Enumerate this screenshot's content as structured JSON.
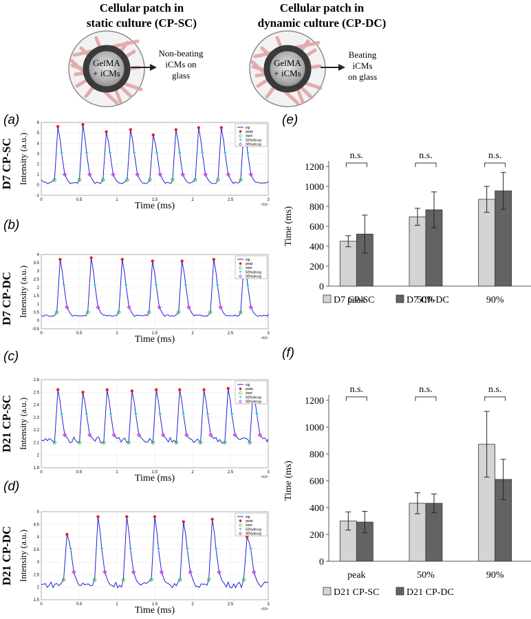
{
  "header": {
    "left": {
      "title_line1": "Cellular patch in",
      "title_line2": "static culture (CP-SC)",
      "dish_line1": "GelMA",
      "dish_line2": "+ iCMs",
      "result_line1": "Non-beating",
      "result_line2": "iCMs on",
      "result_line3": "glass"
    },
    "right": {
      "title_line1": "Cellular patch in",
      "title_line2": "dynamic culture (CP-DC)",
      "dish_line1": "GelMA",
      "dish_line2": "+ iCMs",
      "result_line1": "Beating",
      "result_line2": "iCMs",
      "result_line3": "on glass"
    }
  },
  "colors": {
    "signal": "#1f1fd6",
    "peak": "#e8201e",
    "start": "#2fc42f",
    "decay50": "#2ad4dc",
    "decay90": "#d42cd8",
    "bar_sc": "#d4d4d4",
    "bar_dc": "#636363",
    "dish_ring": "#3a3a3a",
    "fiber": "#e0a0a0"
  },
  "chart_data": [
    {
      "id": "a",
      "panel_label": "(a)",
      "row_label": "D7 CP-SC",
      "type": "line",
      "xlabel": "Time (ms)",
      "ylabel": "Intensity (a.u.)",
      "x_exp": "×10⁴",
      "xlim": [
        0,
        3
      ],
      "ylim": [
        -1,
        6
      ],
      "xticks": [
        "0",
        "0.5",
        "1",
        "1.5",
        "2",
        "2.5",
        "3"
      ],
      "yticks": [
        "-1",
        "0",
        "1",
        "2",
        "3",
        "4",
        "5",
        "6"
      ],
      "legend": [
        "sig",
        "peak",
        "start",
        "50%decay",
        "90%decay"
      ],
      "baseline": 0.2,
      "start_level": 0.5,
      "peaks_x": [
        0.22,
        0.55,
        0.86,
        1.18,
        1.48,
        1.78,
        2.08,
        2.38,
        2.68
      ],
      "peaks_y": [
        5.6,
        5.8,
        5.1,
        5.3,
        4.8,
        5.3,
        5.5,
        5.5,
        5.5
      ],
      "decay50_y": 3.0,
      "decay90_y": 1.0
    },
    {
      "id": "b",
      "panel_label": "(b)",
      "row_label": "D7 CP-DC",
      "type": "line",
      "xlabel": "Time (ms)",
      "ylabel": "Intensity (a.u.)",
      "x_exp": "×10⁴",
      "xlim": [
        0,
        3
      ],
      "ylim": [
        -0.5,
        4
      ],
      "xticks": [
        "0",
        "0.5",
        "1",
        "1.5",
        "2",
        "2.5",
        "3"
      ],
      "yticks": [
        "-0.5",
        "0",
        "0.5",
        "1",
        "1.5",
        "2",
        "2.5",
        "3",
        "3.5",
        "4"
      ],
      "legend": [
        "sig",
        "peak",
        "start",
        "50%decay",
        "90%decay"
      ],
      "baseline": 0.3,
      "start_level": 0.5,
      "peaks_x": [
        0.25,
        0.66,
        1.07,
        1.47,
        1.86,
        2.28,
        2.68
      ],
      "peaks_y": [
        3.7,
        3.8,
        3.7,
        3.6,
        3.6,
        3.7,
        3.6
      ],
      "decay50_y": 2.1,
      "decay90_y": 0.8
    },
    {
      "id": "c",
      "panel_label": "(c)",
      "row_label": "D21 CP-SC",
      "type": "line",
      "xlabel": "Time (ms)",
      "ylabel": "Intensity (a.u.)",
      "x_exp": "×10⁴",
      "xlim": [
        0,
        3
      ],
      "ylim": [
        1.9,
        2.6
      ],
      "xticks": [
        "0",
        "0.5",
        "1",
        "1.5",
        "2",
        "2.5",
        "3"
      ],
      "yticks": [
        "1.9",
        "2",
        "2.1",
        "2.2",
        "2.3",
        "2.4",
        "2.5",
        "2.6"
      ],
      "legend": [
        "sig",
        "peak",
        "start",
        "50%decay",
        "90%decay"
      ],
      "baseline": 2.12,
      "start_level": 2.1,
      "peaks_x": [
        0.22,
        0.55,
        0.87,
        1.2,
        1.52,
        1.83,
        2.15,
        2.47,
        2.8
      ],
      "peaks_y": [
        2.52,
        2.5,
        2.52,
        2.51,
        2.52,
        2.52,
        2.52,
        2.53,
        2.5
      ],
      "decay50_y": 2.32,
      "decay90_y": 2.16
    },
    {
      "id": "d",
      "panel_label": "(d)",
      "row_label": "D21 CP-DC",
      "type": "line",
      "xlabel": "Time (ms)",
      "ylabel": "Intensity (a.u.)",
      "x_exp": "×10⁴",
      "xlim": [
        0,
        3
      ],
      "ylim": [
        1.5,
        5
      ],
      "xticks": [
        "0",
        "0.5",
        "1",
        "1.5",
        "2",
        "2.5",
        "3"
      ],
      "yticks": [
        "1.5",
        "2",
        "2.5",
        "3",
        "3.5",
        "4",
        "4.5",
        "5"
      ],
      "legend": [
        "sig",
        "peak",
        "start",
        "50%decay",
        "90%decay"
      ],
      "baseline": 2.1,
      "start_level": 2.3,
      "peaks_x": [
        0.34,
        0.75,
        1.13,
        1.5,
        1.88,
        2.26,
        2.72
      ],
      "peaks_y": [
        4.1,
        4.8,
        4.8,
        4.8,
        4.6,
        4.7,
        4.0
      ],
      "decay50_y": 3.5,
      "decay90_y": 2.6
    },
    {
      "id": "e",
      "panel_label": "(e)",
      "type": "bar",
      "ylabel": "Time (ms)",
      "ylim": [
        0,
        1200
      ],
      "yticks": [
        "0",
        "200",
        "400",
        "600",
        "800",
        "1000",
        "1200"
      ],
      "categories": [
        "peak",
        "50%",
        "90%"
      ],
      "series": [
        {
          "name": "D7 CP-SC",
          "values": [
            450,
            695,
            870
          ],
          "errors": [
            55,
            85,
            130
          ]
        },
        {
          "name": "D7 CP-DC",
          "values": [
            522,
            765,
            955
          ],
          "errors": [
            190,
            180,
            185
          ]
        }
      ],
      "significance": [
        "n.s.",
        "n.s.",
        "n.s."
      ]
    },
    {
      "id": "f",
      "panel_label": "(f)",
      "type": "bar",
      "ylabel": "Time (ms)",
      "ylim": [
        0,
        1200
      ],
      "yticks": [
        "0",
        "200",
        "400",
        "600",
        "800",
        "1000",
        "1200"
      ],
      "categories": [
        "peak",
        "50%",
        "90%"
      ],
      "series": [
        {
          "name": "D21 CP-SC",
          "values": [
            300,
            432,
            872
          ],
          "errors": [
            68,
            78,
            245
          ]
        },
        {
          "name": "D21 CP-DC",
          "values": [
            292,
            432,
            610
          ],
          "errors": [
            80,
            70,
            150
          ]
        }
      ],
      "significance": [
        "n.s.",
        "n.s.",
        "n.s."
      ]
    }
  ]
}
